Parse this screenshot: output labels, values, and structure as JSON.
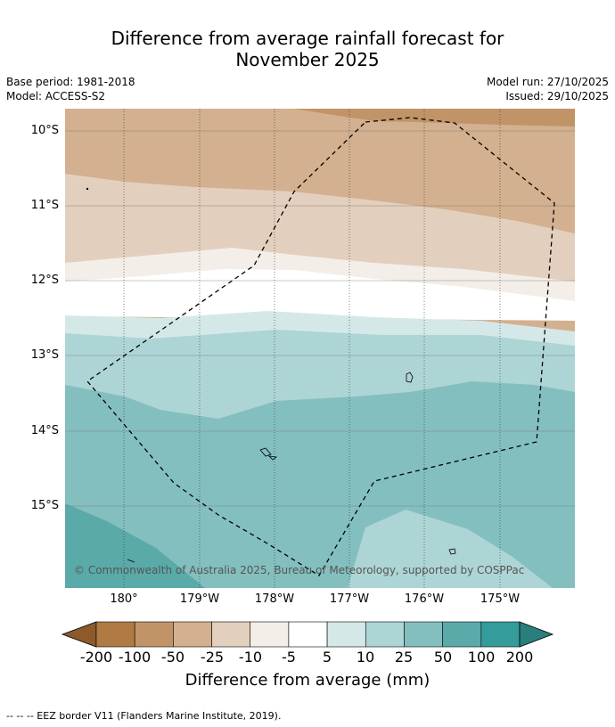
{
  "title_line1": "Difference from average rainfall forecast for",
  "title_line2": "November 2025",
  "base_period": "Base period: 1981-2018",
  "model": "Model: ACCESS-S2",
  "model_run": "Model run: 27/10/2025",
  "issued": "Issued: 29/10/2025",
  "lat_labels": [
    "10°S",
    "11°S",
    "12°S",
    "13°S",
    "14°S",
    "15°S"
  ],
  "lon_labels": [
    "180°",
    "179°W",
    "178°W",
    "177°W",
    "176°W",
    "175°W"
  ],
  "copyright": "© Commonwealth of Australia 2025, Bureau of Meteorology, supported by COSPPac",
  "colorbar": {
    "ticks": [
      "-200",
      "-100",
      "-50",
      "-25",
      "-10",
      "-5",
      "5",
      "10",
      "25",
      "50",
      "100",
      "200"
    ],
    "colors": [
      "#8c5a2b",
      "#b07a45",
      "#c19468",
      "#d3b08f",
      "#e3cfbd",
      "#f3eee8",
      "#ffffff",
      "#d5e8e8",
      "#aed5d5",
      "#84bfbf",
      "#5aaaaa",
      "#349c9a",
      "#2a7f7d"
    ],
    "label": "Difference from average (mm)"
  },
  "footnote": "--  --  -- EEZ border V11 (Flanders Marine Institute, 2019)."
}
